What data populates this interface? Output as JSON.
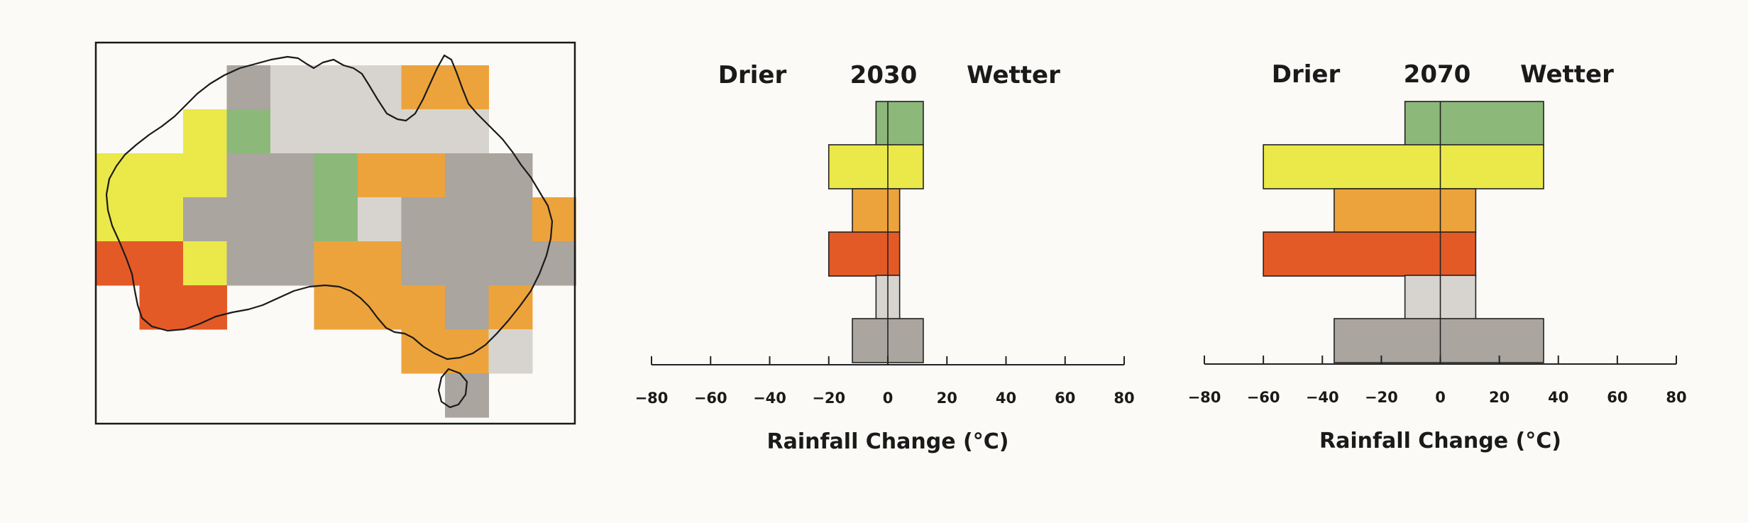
{
  "colors": {
    "green": "#8cb87a",
    "yellow": "#ebe84a",
    "orange": "#eda33b",
    "red": "#e45a27",
    "light_gray": "#d7d4cf",
    "dark_gray": "#aaa59e"
  },
  "map": {
    "cells": [
      {
        "row": 0,
        "col": 3,
        "color": "dark_gray"
      },
      {
        "row": 0,
        "col": 4,
        "color": "light_gray"
      },
      {
        "row": 0,
        "col": 5,
        "color": "light_gray"
      },
      {
        "row": 0,
        "col": 6,
        "color": "light_gray"
      },
      {
        "row": 0,
        "col": 7,
        "color": "orange"
      },
      {
        "row": 0,
        "col": 8,
        "color": "orange"
      },
      {
        "row": 1,
        "col": 2,
        "color": "yellow"
      },
      {
        "row": 1,
        "col": 3,
        "color": "green"
      },
      {
        "row": 1,
        "col": 4,
        "color": "light_gray"
      },
      {
        "row": 1,
        "col": 5,
        "color": "light_gray"
      },
      {
        "row": 1,
        "col": 6,
        "color": "light_gray"
      },
      {
        "row": 1,
        "col": 7,
        "color": "light_gray"
      },
      {
        "row": 1,
        "col": 8,
        "color": "light_gray"
      },
      {
        "row": 2,
        "col": 0,
        "color": "yellow"
      },
      {
        "row": 2,
        "col": 1,
        "color": "yellow"
      },
      {
        "row": 2,
        "col": 2,
        "color": "yellow"
      },
      {
        "row": 2,
        "col": 3,
        "color": "dark_gray"
      },
      {
        "row": 2,
        "col": 4,
        "color": "dark_gray"
      },
      {
        "row": 2,
        "col": 5,
        "color": "green"
      },
      {
        "row": 2,
        "col": 6,
        "color": "orange"
      },
      {
        "row": 2,
        "col": 7,
        "color": "orange"
      },
      {
        "row": 2,
        "col": 8,
        "color": "dark_gray"
      },
      {
        "row": 2,
        "col": 9,
        "color": "dark_gray"
      },
      {
        "row": 3,
        "col": 0,
        "color": "yellow"
      },
      {
        "row": 3,
        "col": 1,
        "color": "yellow"
      },
      {
        "row": 3,
        "col": 2,
        "color": "dark_gray"
      },
      {
        "row": 3,
        "col": 3,
        "color": "dark_gray"
      },
      {
        "row": 3,
        "col": 4,
        "color": "dark_gray"
      },
      {
        "row": 3,
        "col": 5,
        "color": "green"
      },
      {
        "row": 3,
        "col": 6,
        "color": "light_gray"
      },
      {
        "row": 3,
        "col": 7,
        "color": "dark_gray"
      },
      {
        "row": 3,
        "col": 8,
        "color": "dark_gray"
      },
      {
        "row": 3,
        "col": 9,
        "color": "dark_gray"
      },
      {
        "row": 3,
        "col": 10,
        "color": "orange"
      },
      {
        "row": 4,
        "col": 0,
        "color": "red"
      },
      {
        "row": 4,
        "col": 1,
        "color": "red"
      },
      {
        "row": 4,
        "col": 2,
        "color": "yellow"
      },
      {
        "row": 4,
        "col": 3,
        "color": "dark_gray"
      },
      {
        "row": 4,
        "col": 4,
        "color": "dark_gray"
      },
      {
        "row": 4,
        "col": 5,
        "color": "orange"
      },
      {
        "row": 4,
        "col": 6,
        "color": "orange"
      },
      {
        "row": 4,
        "col": 7,
        "color": "dark_gray"
      },
      {
        "row": 4,
        "col": 8,
        "color": "dark_gray"
      },
      {
        "row": 4,
        "col": 9,
        "color": "dark_gray"
      },
      {
        "row": 4,
        "col": 10,
        "color": "dark_gray"
      },
      {
        "row": 5,
        "col": 1,
        "color": "red"
      },
      {
        "row": 5,
        "col": 2,
        "color": "red"
      },
      {
        "row": 5,
        "col": 5,
        "color": "orange"
      },
      {
        "row": 5,
        "col": 6,
        "color": "orange"
      },
      {
        "row": 5,
        "col": 7,
        "color": "orange"
      },
      {
        "row": 5,
        "col": 8,
        "color": "dark_gray"
      },
      {
        "row": 5,
        "col": 9,
        "color": "orange"
      },
      {
        "row": 6,
        "col": 7,
        "color": "orange"
      },
      {
        "row": 6,
        "col": 8,
        "color": "orange"
      },
      {
        "row": 6,
        "col": 9,
        "color": "light_gray"
      },
      {
        "row": 7,
        "col": 8,
        "color": "dark_gray"
      }
    ]
  },
  "chart_data": [
    {
      "type": "bar",
      "orientation": "horizontal",
      "title": "2030",
      "left_label": "Drier",
      "right_label": "Wetter",
      "xlabel": "Rainfall Change (°C)",
      "xlim": [
        -80,
        80
      ],
      "xticks": [
        "-80",
        "-60",
        "-40",
        "-20",
        "0",
        "20",
        "40",
        "60",
        "80"
      ],
      "bars": [
        {
          "color": "green",
          "min": -4,
          "max": 12
        },
        {
          "color": "yellow",
          "min": -20,
          "max": 12
        },
        {
          "color": "orange",
          "min": -12,
          "max": 4
        },
        {
          "color": "red",
          "min": -20,
          "max": 4
        },
        {
          "color": "light_gray",
          "min": -4,
          "max": 4
        },
        {
          "color": "dark_gray",
          "min": -12,
          "max": 12
        }
      ]
    },
    {
      "type": "bar",
      "orientation": "horizontal",
      "title": "2070",
      "left_label": "Drier",
      "right_label": "Wetter",
      "xlabel": "Rainfall Change (°C)",
      "xlim": [
        -80,
        80
      ],
      "xticks": [
        "-80",
        "-60",
        "-40",
        "-20",
        "0",
        "20",
        "40",
        "60",
        "80"
      ],
      "bars": [
        {
          "color": "green",
          "min": -12,
          "max": 35
        },
        {
          "color": "yellow",
          "min": -60,
          "max": 35
        },
        {
          "color": "orange",
          "min": -36,
          "max": 12
        },
        {
          "color": "red",
          "min": -60,
          "max": 12
        },
        {
          "color": "light_gray",
          "min": -12,
          "max": 12
        },
        {
          "color": "dark_gray",
          "min": -36,
          "max": 35
        }
      ]
    }
  ]
}
